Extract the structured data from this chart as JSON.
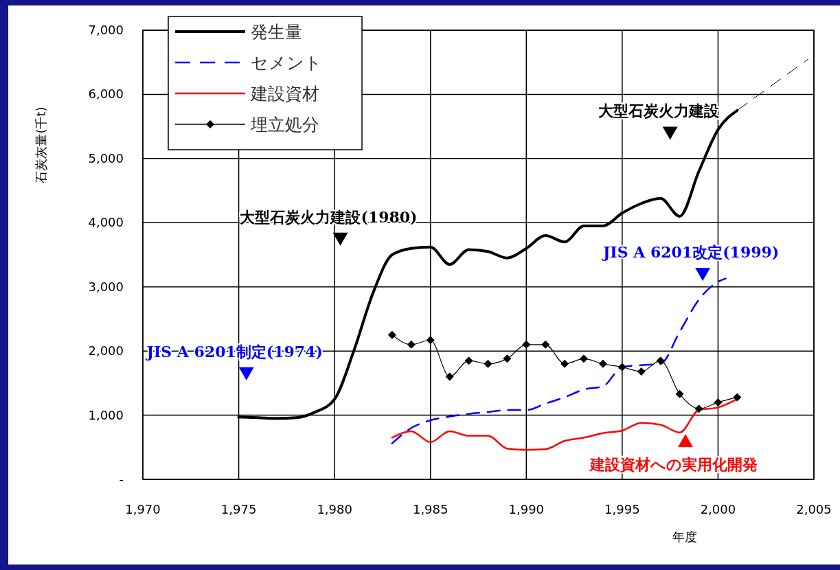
{
  "chart_data": {
    "type": "line",
    "xlabel": "年度",
    "ylabel": "石炭灰量(千t)",
    "xlim": [
      1970,
      2005
    ],
    "xticks": [
      {
        "value": 1970,
        "label": "1,970"
      },
      {
        "value": 1975,
        "label": "1,975"
      },
      {
        "value": 1980,
        "label": "1,980"
      },
      {
        "value": 1985,
        "label": "1,985"
      },
      {
        "value": 1990,
        "label": "1,990"
      },
      {
        "value": 1995,
        "label": "1,995"
      },
      {
        "value": 2000,
        "label": "2,000"
      },
      {
        "value": 2005,
        "label": "2,005"
      }
    ],
    "ylim": [
      0,
      7000
    ],
    "yticks": [
      {
        "value": 0,
        "label": "-"
      },
      {
        "value": 1000,
        "label": "1,000"
      },
      {
        "value": 2000,
        "label": "2,000"
      },
      {
        "value": 3000,
        "label": "3,000"
      },
      {
        "value": 4000,
        "label": "4,000"
      },
      {
        "value": 5000,
        "label": "5,000"
      },
      {
        "value": 6000,
        "label": "6,000"
      },
      {
        "value": 7000,
        "label": "7,000"
      }
    ],
    "grid": true,
    "legend": "top left",
    "series": [
      {
        "name": "発生量",
        "color": "#000000",
        "line_style": "solid",
        "marker": "none",
        "x": [
          1975,
          1976,
          1977,
          1978,
          1979,
          1980,
          1981,
          1982,
          1983,
          1984,
          1985,
          1986,
          1987,
          1988,
          1989,
          1990,
          1991,
          1992,
          1993,
          1994,
          1995,
          1996,
          1997,
          1998,
          1999,
          2000,
          2001
        ],
        "values": [
          970,
          960,
          950,
          960,
          1050,
          1250,
          2000,
          2900,
          3500,
          3600,
          3620,
          3350,
          3580,
          3550,
          3450,
          3600,
          3800,
          3700,
          3950,
          3950,
          4150,
          4300,
          4380,
          4100,
          4800,
          5450,
          5750
        ]
      },
      {
        "color": "#000000",
        "line_style": "dashed",
        "marker": "none",
        "x": [
          2001,
          2004.7
        ],
        "values": [
          5750,
          6550
        ]
      },
      {
        "name": "セメント",
        "color": "#0000ff",
        "line_style": "dashed",
        "marker": "none",
        "x": [
          1983,
          1984,
          1985,
          1986,
          1987,
          1988,
          1989,
          1990,
          1991,
          1992,
          1993,
          1994,
          1995,
          1996,
          1997,
          1998,
          1999,
          2000,
          2000.4
        ],
        "values": [
          560,
          800,
          920,
          980,
          1020,
          1050,
          1080,
          1080,
          1180,
          1280,
          1400,
          1450,
          1750,
          1780,
          1800,
          2300,
          2800,
          3080,
          3130
        ]
      },
      {
        "name": "建設資材",
        "color": "#ff0000",
        "line_style": "solid",
        "marker": "none",
        "x": [
          1983,
          1984,
          1985,
          1986,
          1987,
          1988,
          1989,
          1990,
          1991,
          1992,
          1993,
          1994,
          1995,
          1996,
          1997,
          1998,
          1999,
          2000,
          2001
        ],
        "values": [
          650,
          750,
          580,
          750,
          680,
          680,
          480,
          460,
          470,
          600,
          650,
          720,
          760,
          880,
          850,
          730,
          1080,
          1120,
          1250
        ]
      },
      {
        "name": "埋立処分",
        "color": "#000000",
        "line_style": "solid",
        "marker": "diamond",
        "x": [
          1983,
          1984,
          1985,
          1986,
          1987,
          1988,
          1989,
          1990,
          1991,
          1992,
          1993,
          1994,
          1995,
          1996,
          1997,
          1998,
          1999,
          2000,
          2001
        ],
        "values": [
          2250,
          2100,
          2170,
          1600,
          1850,
          1800,
          1880,
          2100,
          2100,
          1800,
          1880,
          1800,
          1750,
          1680,
          1850,
          1330,
          1100,
          1200,
          1280
        ]
      }
    ],
    "annotations": [
      {
        "text": "大型石炭火力建設(1980)",
        "x": 1980.3,
        "y": 3750
      },
      {
        "text": "JIS A 6201制定(1974)",
        "x": 1975.4,
        "y": 1650
      },
      {
        "text": "大型石炭火力建設",
        "x": 1997.5,
        "y": 5400
      },
      {
        "text": "JIS A 6201改定(1999)",
        "x": 1999.2,
        "y": 3200
      },
      {
        "text": "建設資材への実用化開発",
        "x": 1998.3,
        "y": 600
      }
    ]
  }
}
